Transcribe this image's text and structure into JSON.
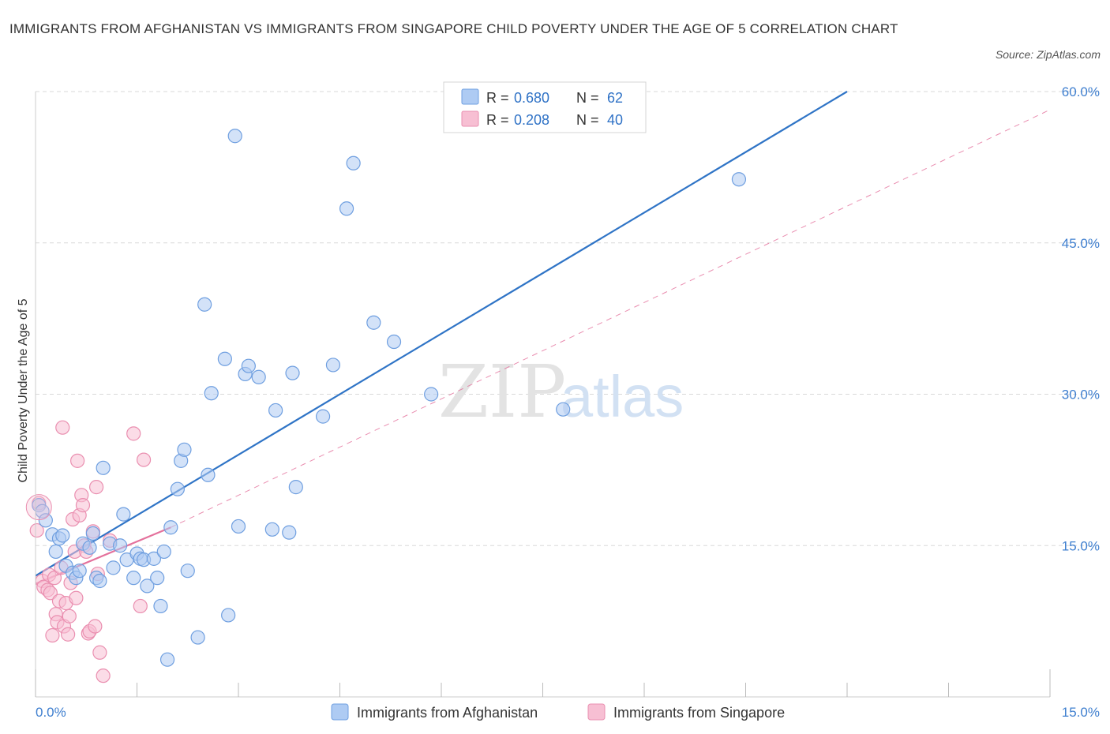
{
  "header": {
    "title": "IMMIGRANTS FROM AFGHANISTAN VS IMMIGRANTS FROM SINGAPORE CHILD POVERTY UNDER THE AGE OF 5 CORRELATION CHART",
    "source": "Source: ZipAtlas.com"
  },
  "watermark": {
    "zip": "ZIP",
    "atlas": "atlas"
  },
  "colors": {
    "blue_fill": "#aecbf3",
    "blue_stroke": "#6f9fe0",
    "blue_line": "#2f74c6",
    "pink_fill": "#f7bfd3",
    "pink_stroke": "#ea8fb0",
    "pink_line": "#e4719c",
    "grid": "#d9d9d9",
    "tick_label": "#3f7fcf"
  },
  "chart_data": {
    "type": "scatter",
    "title": "IMMIGRANTS FROM AFGHANISTAN VS IMMIGRANTS FROM SINGAPORE CHILD POVERTY UNDER THE AGE OF 5 CORRELATION CHART",
    "xlabel": "",
    "ylabel": "Child Poverty Under the Age of 5",
    "xlim": [
      0,
      15
    ],
    "ylim": [
      0,
      60
    ],
    "y_ticks": [
      15,
      30,
      45,
      60
    ],
    "y_tick_labels": [
      "15.0%",
      "30.0%",
      "45.0%",
      "60.0%"
    ],
    "x_tick_labels": [
      "0.0%",
      "15.0%"
    ],
    "grid": true,
    "legend": [
      {
        "series": "Immigrants from Afghanistan",
        "r_label": "R =",
        "r_value": "0.680",
        "n_label": "N =",
        "n_value": "62"
      },
      {
        "series": "Immigrants from Singapore",
        "r_label": "R =",
        "r_value": "0.208",
        "n_label": "N =",
        "n_value": "40"
      }
    ],
    "series": [
      {
        "name": "Immigrants from Afghanistan",
        "color": "blue",
        "trend": {
          "x": [
            0,
            12
          ],
          "y": [
            12.0,
            60.0
          ],
          "style": "solid"
        },
        "points": [
          [
            0.05,
            19.0
          ],
          [
            0.1,
            18.4
          ],
          [
            0.15,
            17.5
          ],
          [
            0.25,
            16.1
          ],
          [
            0.3,
            14.4
          ],
          [
            0.35,
            15.7
          ],
          [
            0.4,
            16.0
          ],
          [
            0.45,
            13.0
          ],
          [
            0.55,
            12.3
          ],
          [
            0.6,
            11.8
          ],
          [
            0.65,
            12.5
          ],
          [
            0.7,
            15.2
          ],
          [
            0.8,
            14.8
          ],
          [
            0.85,
            16.2
          ],
          [
            0.9,
            11.8
          ],
          [
            0.95,
            11.5
          ],
          [
            1.0,
            22.7
          ],
          [
            1.1,
            15.2
          ],
          [
            1.15,
            12.8
          ],
          [
            1.25,
            15.0
          ],
          [
            1.3,
            18.1
          ],
          [
            1.35,
            13.6
          ],
          [
            1.45,
            11.8
          ],
          [
            1.5,
            14.2
          ],
          [
            1.55,
            13.7
          ],
          [
            1.6,
            13.6
          ],
          [
            1.65,
            11.0
          ],
          [
            1.75,
            13.7
          ],
          [
            1.8,
            11.8
          ],
          [
            1.85,
            9.0
          ],
          [
            1.9,
            14.4
          ],
          [
            1.95,
            3.7
          ],
          [
            2.0,
            16.8
          ],
          [
            2.1,
            20.6
          ],
          [
            2.15,
            23.4
          ],
          [
            2.2,
            24.5
          ],
          [
            2.25,
            12.5
          ],
          [
            2.4,
            5.9
          ],
          [
            2.5,
            38.9
          ],
          [
            2.55,
            22.0
          ],
          [
            2.6,
            30.1
          ],
          [
            2.8,
            33.5
          ],
          [
            2.85,
            8.1
          ],
          [
            2.95,
            55.6
          ],
          [
            3.0,
            16.9
          ],
          [
            3.1,
            32.0
          ],
          [
            3.15,
            32.8
          ],
          [
            3.3,
            31.7
          ],
          [
            3.5,
            16.6
          ],
          [
            3.55,
            28.4
          ],
          [
            3.75,
            16.3
          ],
          [
            3.8,
            32.1
          ],
          [
            3.85,
            20.8
          ],
          [
            4.25,
            27.8
          ],
          [
            4.4,
            32.9
          ],
          [
            4.6,
            48.4
          ],
          [
            4.7,
            52.9
          ],
          [
            5.0,
            37.1
          ],
          [
            5.3,
            35.2
          ],
          [
            5.85,
            30.0
          ],
          [
            7.8,
            28.5
          ],
          [
            10.4,
            51.3
          ]
        ]
      },
      {
        "name": "Immigrants from Singapore",
        "color": "pink",
        "trend": {
          "x": [
            0,
            2.0
          ],
          "y": [
            11.2,
            16.8
          ],
          "style": "solid"
        },
        "extended_trend": {
          "x": [
            2.0,
            15.0
          ],
          "y": [
            16.8,
            58.2
          ],
          "style": "dashed"
        },
        "points": [
          [
            0.02,
            16.5
          ],
          [
            0.05,
            19.2
          ],
          [
            0.1,
            11.5
          ],
          [
            0.12,
            10.9
          ],
          [
            0.18,
            10.6
          ],
          [
            0.2,
            12.1
          ],
          [
            0.22,
            10.3
          ],
          [
            0.25,
            6.1
          ],
          [
            0.28,
            11.8
          ],
          [
            0.3,
            8.2
          ],
          [
            0.32,
            7.4
          ],
          [
            0.35,
            9.5
          ],
          [
            0.38,
            12.8
          ],
          [
            0.4,
            26.7
          ],
          [
            0.42,
            7.0
          ],
          [
            0.45,
            9.3
          ],
          [
            0.48,
            6.2
          ],
          [
            0.5,
            8.0
          ],
          [
            0.52,
            11.3
          ],
          [
            0.55,
            17.6
          ],
          [
            0.58,
            14.4
          ],
          [
            0.6,
            9.8
          ],
          [
            0.62,
            23.4
          ],
          [
            0.65,
            18.0
          ],
          [
            0.68,
            20.0
          ],
          [
            0.7,
            19.0
          ],
          [
            0.72,
            15.0
          ],
          [
            0.75,
            14.4
          ],
          [
            0.78,
            6.3
          ],
          [
            0.8,
            6.5
          ],
          [
            0.85,
            16.4
          ],
          [
            0.88,
            7.0
          ],
          [
            0.9,
            20.8
          ],
          [
            0.92,
            12.2
          ],
          [
            0.95,
            4.4
          ],
          [
            1.0,
            2.1
          ],
          [
            1.1,
            15.5
          ],
          [
            1.45,
            26.1
          ],
          [
            1.55,
            9.0
          ],
          [
            1.6,
            23.5
          ]
        ]
      }
    ]
  }
}
